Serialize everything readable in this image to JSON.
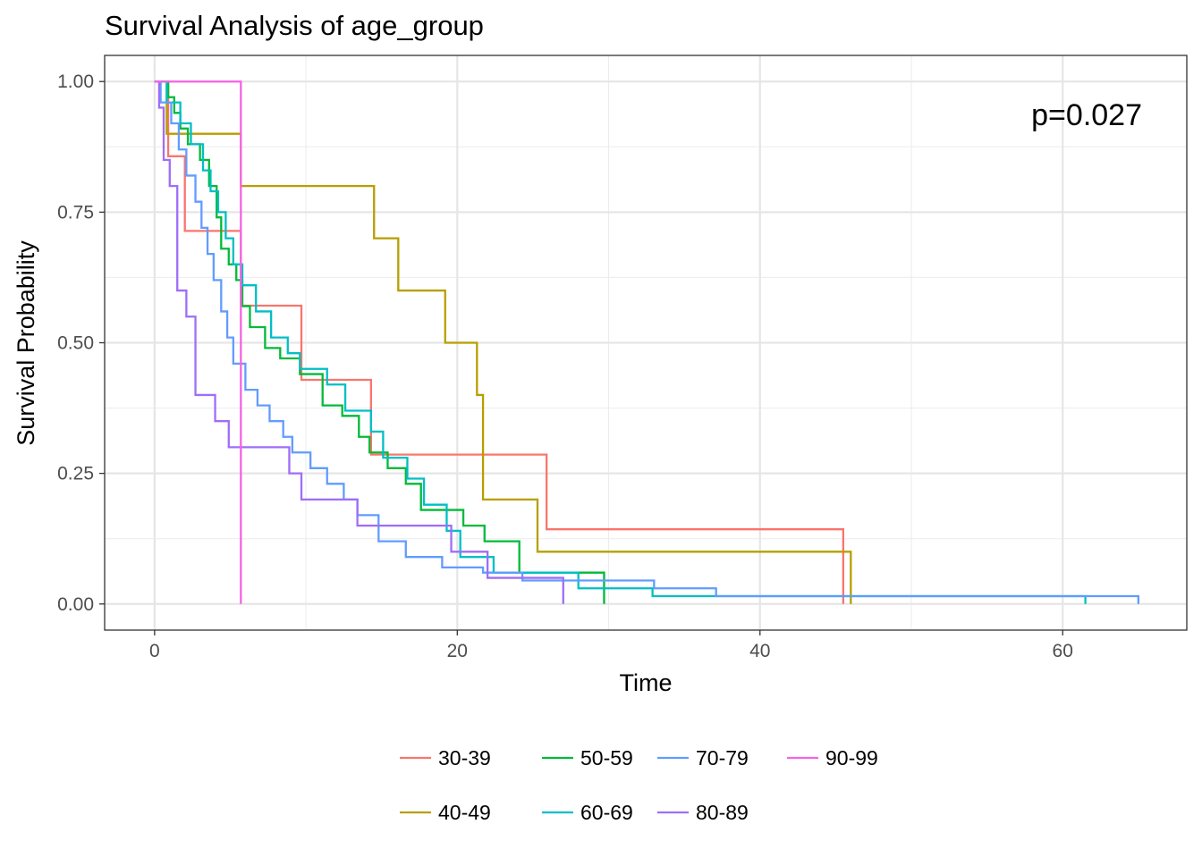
{
  "chart_data": {
    "type": "line",
    "title": "Survival Analysis of age_group",
    "xlabel": "Time",
    "ylabel": "Survival Probability",
    "xlim": [
      -3.3,
      68.2
    ],
    "ylim": [
      -0.05,
      1.05
    ],
    "x_ticks": [
      0,
      20,
      40,
      60
    ],
    "x_tick_labels": [
      "0",
      "20",
      "40",
      "60"
    ],
    "y_ticks": [
      0,
      0.25,
      0.5,
      0.75,
      1
    ],
    "y_tick_labels": [
      "0.00",
      "0.25",
      "0.50",
      "0.75",
      "1.00"
    ],
    "grid": true,
    "legend_position": "bottom",
    "annotation": "p=0.027",
    "series": [
      {
        "name": "30-39",
        "color": "#F8766D",
        "x": [
          0,
          0.9,
          2.0,
          5.7,
          9.7,
          14.3,
          25.9,
          45.5
        ],
        "y": [
          1.0,
          0.857,
          0.714,
          0.571,
          0.429,
          0.286,
          0.143,
          0.0
        ]
      },
      {
        "name": "40-49",
        "color": "#B79F00",
        "x": [
          0,
          0.8,
          5.7,
          14.5,
          16.1,
          19.2,
          21.3,
          21.7,
          25.3,
          46.0
        ],
        "y": [
          1.0,
          0.9,
          0.8,
          0.7,
          0.6,
          0.5,
          0.4,
          0.2,
          0.1,
          0.0
        ]
      },
      {
        "name": "50-59",
        "color": "#00BA38",
        "x": [
          0,
          0.9,
          1.3,
          1.7,
          2.2,
          3.0,
          3.6,
          4.1,
          4.4,
          4.9,
          5.4,
          5.8,
          6.3,
          7.3,
          8.3,
          9.6,
          11.1,
          12.4,
          13.5,
          14.2,
          15.4,
          16.6,
          17.6,
          20.4,
          21.8,
          24.1,
          29.7
        ],
        "y": [
          1.0,
          0.97,
          0.94,
          0.91,
          0.88,
          0.85,
          0.8,
          0.74,
          0.68,
          0.65,
          0.62,
          0.57,
          0.53,
          0.49,
          0.47,
          0.44,
          0.38,
          0.36,
          0.32,
          0.29,
          0.26,
          0.23,
          0.18,
          0.15,
          0.12,
          0.06,
          0.0
        ]
      },
      {
        "name": "60-69",
        "color": "#00BFC4",
        "x": [
          0,
          0.8,
          1.7,
          2.4,
          3.2,
          3.7,
          4.2,
          4.7,
          5.2,
          5.8,
          6.7,
          7.7,
          8.8,
          9.6,
          11.4,
          12.6,
          14.3,
          15.1,
          16.7,
          17.8,
          19.3,
          20.2,
          22.4,
          28.0,
          32.9,
          61.5
        ],
        "y": [
          1.0,
          0.96,
          0.92,
          0.88,
          0.83,
          0.79,
          0.75,
          0.7,
          0.65,
          0.61,
          0.56,
          0.51,
          0.48,
          0.45,
          0.42,
          0.37,
          0.33,
          0.28,
          0.24,
          0.19,
          0.14,
          0.09,
          0.06,
          0.03,
          0.015,
          0.0
        ]
      },
      {
        "name": "70-79",
        "color": "#619CFF",
        "x": [
          0,
          0.4,
          1.1,
          1.6,
          2.1,
          2.7,
          3.1,
          3.5,
          3.9,
          4.4,
          4.8,
          5.2,
          6.0,
          6.8,
          7.6,
          8.5,
          9.1,
          10.3,
          11.4,
          12.5,
          13.4,
          14.8,
          16.6,
          19.0,
          21.7,
          24.3,
          33.0,
          37.1,
          65.0
        ],
        "y": [
          1.0,
          0.96,
          0.92,
          0.87,
          0.82,
          0.77,
          0.72,
          0.67,
          0.62,
          0.56,
          0.51,
          0.46,
          0.41,
          0.38,
          0.35,
          0.32,
          0.29,
          0.26,
          0.23,
          0.2,
          0.17,
          0.12,
          0.09,
          0.07,
          0.06,
          0.045,
          0.03,
          0.015,
          0.0
        ]
      },
      {
        "name": "80-89",
        "color": "#9F6DF8",
        "x": [
          0,
          0.3,
          0.6,
          1.0,
          1.5,
          2.1,
          2.7,
          4.0,
          4.9,
          8.9,
          9.7,
          13.4,
          19.6,
          22.0,
          27.0
        ],
        "y": [
          1.0,
          0.95,
          0.85,
          0.8,
          0.6,
          0.55,
          0.4,
          0.35,
          0.3,
          0.25,
          0.2,
          0.15,
          0.1,
          0.05,
          0.0
        ]
      },
      {
        "name": "90-99",
        "color": "#F564E3",
        "x": [
          0,
          5.7
        ],
        "y": [
          1.0,
          0.0
        ]
      }
    ]
  }
}
